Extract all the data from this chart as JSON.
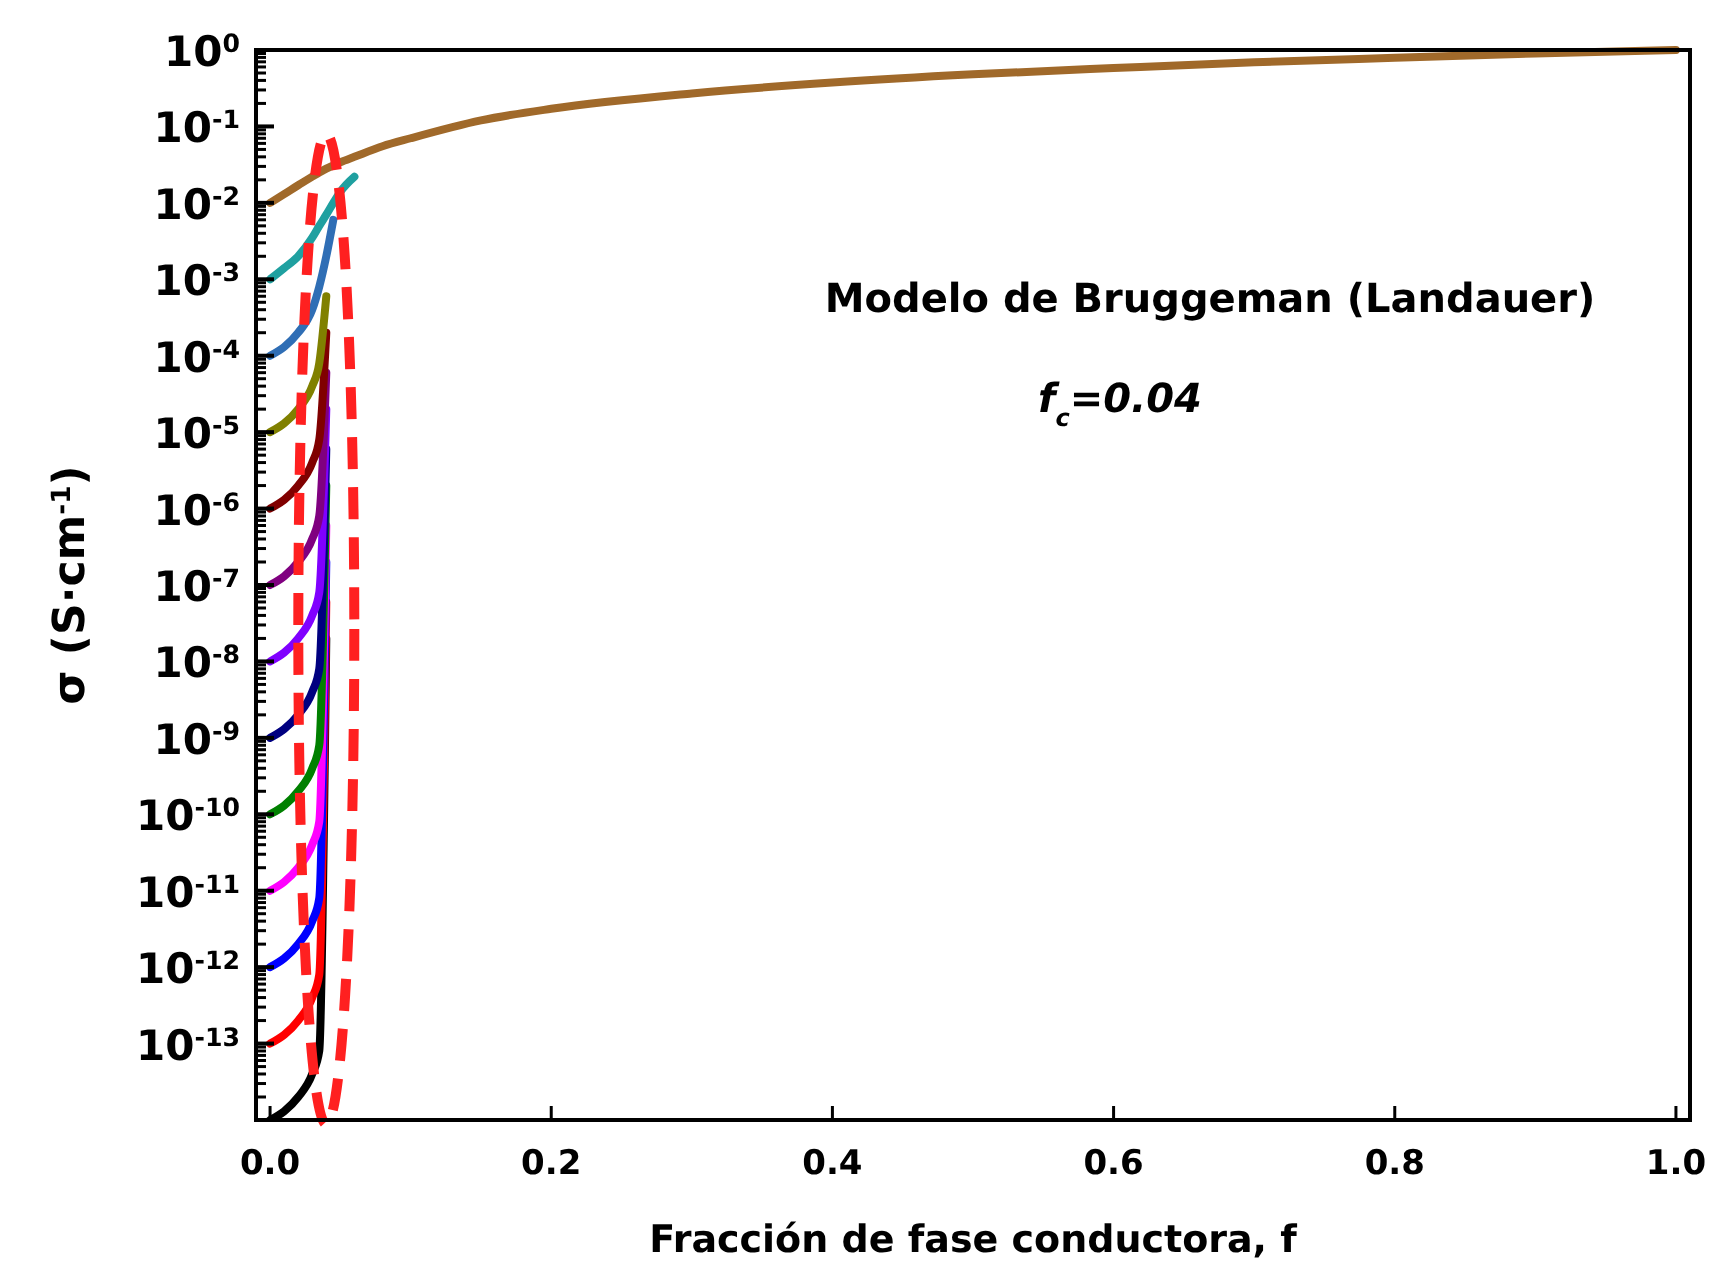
{
  "chart_data": {
    "type": "line",
    "xlabel": "Fracción de fase conductora, f",
    "ylabel": "σ (S·cm$^{-1}$)",
    "annotations": [
      "Modelo de Bruggeman (Landauer)",
      "f$_{c}$=0.04"
    ],
    "log": "y",
    "grid": false,
    "marker": "none",
    "line_style": "solid",
    "xlim": [
      -0.01,
      1.01
    ],
    "xticks": [
      {
        "value": 0,
        "label": "0.0"
      },
      0.2,
      0.4,
      0.6,
      0.8,
      {
        "value": 1,
        "label": "1.0"
      }
    ],
    "ylim": [
      1e-14,
      1
    ],
    "yticks": [
      {
        "value": 1,
        "label": "10$^{0}$"
      },
      {
        "value": 0.1,
        "label": "10$^{-1}$"
      },
      {
        "value": 0.01,
        "label": "10$^{-2}$"
      },
      {
        "value": 0.001,
        "label": "10$^{-3}$"
      },
      {
        "value": 0.0001,
        "label": "10$^{-4}$"
      },
      {
        "value": 1e-05,
        "label": "10$^{-5}$"
      },
      {
        "value": 1e-06,
        "label": "10$^{-6}$"
      },
      {
        "value": 1e-07,
        "label": "10$^{-7}$"
      },
      {
        "value": 1e-08,
        "label": "10$^{-8}$"
      },
      {
        "value": 1e-09,
        "label": "10$^{-9}$"
      },
      {
        "value": 1e-10,
        "label": "10$^{-10}$"
      },
      {
        "value": 1e-11,
        "label": "10$^{-11}$"
      },
      {
        "value": 1e-12,
        "label": "10$^{-12}$"
      },
      {
        "value": 1e-13,
        "label": "10$^{-13}$"
      },
      {
        "value": 1e-14,
        "label": null
      }
    ],
    "x": [
      0,
      0.01,
      0.02,
      0.03,
      0.035,
      0.04,
      0.045,
      0.05,
      0.06,
      0.08,
      0.1,
      0.15,
      0.2,
      0.3,
      0.4,
      0.5,
      0.6,
      0.7,
      0.8,
      0.9,
      1.0
    ],
    "series": [
      {
        "color": "#000000",
        "values": [
          1e-14,
          1.3e-14,
          2e-14,
          4e-14,
          8e-14,
          2e-08,
          null,
          null,
          null,
          null,
          null,
          null,
          null,
          null,
          null,
          null,
          null,
          null,
          null,
          null,
          null
        ]
      },
      {
        "color": "#ff0000",
        "values": [
          1e-13,
          1.3e-13,
          2e-13,
          4e-13,
          8e-13,
          6e-08,
          null,
          null,
          null,
          null,
          null,
          null,
          null,
          null,
          null,
          null,
          null,
          null,
          null,
          null,
          null
        ]
      },
      {
        "color": "#0000ff",
        "values": [
          1e-12,
          1.3e-12,
          2e-12,
          4e-12,
          8e-12,
          2e-07,
          null,
          null,
          null,
          null,
          null,
          null,
          null,
          null,
          null,
          null,
          null,
          null,
          null,
          null,
          null
        ]
      },
      {
        "color": "#ff00ff",
        "values": [
          1e-11,
          1.3e-11,
          2e-11,
          4e-11,
          8e-11,
          6e-07,
          null,
          null,
          null,
          null,
          null,
          null,
          null,
          null,
          null,
          null,
          null,
          null,
          null,
          null,
          null
        ]
      },
      {
        "color": "#008000",
        "values": [
          1e-10,
          1.3e-10,
          2e-10,
          4e-10,
          8e-10,
          2e-06,
          null,
          null,
          null,
          null,
          null,
          null,
          null,
          null,
          null,
          null,
          null,
          null,
          null,
          null,
          null
        ]
      },
      {
        "color": "#000080",
        "values": [
          1e-09,
          1.3e-09,
          2e-09,
          4e-09,
          8e-09,
          6e-06,
          null,
          null,
          null,
          null,
          null,
          null,
          null,
          null,
          null,
          null,
          null,
          null,
          null,
          null,
          null
        ]
      },
      {
        "color": "#8000ff",
        "values": [
          1e-08,
          1.3e-08,
          2e-08,
          4e-08,
          8e-08,
          2e-05,
          null,
          null,
          null,
          null,
          null,
          null,
          null,
          null,
          null,
          null,
          null,
          null,
          null,
          null,
          null
        ]
      },
      {
        "color": "#800080",
        "values": [
          1e-07,
          1.3e-07,
          2e-07,
          4e-07,
          8e-07,
          6e-05,
          null,
          null,
          null,
          null,
          null,
          null,
          null,
          null,
          null,
          null,
          null,
          null,
          null,
          null,
          null
        ]
      },
      {
        "color": "#800000",
        "values": [
          1e-06,
          1.3e-06,
          2e-06,
          4e-06,
          8e-06,
          0.0002,
          null,
          null,
          null,
          null,
          null,
          null,
          null,
          null,
          null,
          null,
          null,
          null,
          null,
          null,
          null
        ]
      },
      {
        "color": "#808000",
        "values": [
          1e-05,
          1.3e-05,
          2e-05,
          4e-05,
          8e-05,
          0.0006,
          null,
          null,
          null,
          null,
          null,
          null,
          null,
          null,
          null,
          null,
          null,
          null,
          null,
          null,
          null
        ]
      },
      {
        "color": "#2f6eb5",
        "values": [
          0.0001,
          0.00013,
          0.0002,
          0.0004,
          0.0008,
          0.002,
          0.006,
          null,
          null,
          null,
          null,
          null,
          null,
          null,
          null,
          null,
          null,
          null,
          null,
          null,
          null
        ]
      },
      {
        "color": "#1fa0a0",
        "values": [
          0.001,
          0.0014,
          0.002,
          0.0035,
          0.005,
          0.007,
          0.01,
          0.014,
          0.022,
          null,
          null,
          null,
          null,
          null,
          null,
          null,
          null,
          null,
          null,
          null,
          null
        ]
      },
      {
        "color": "#a0692a",
        "values": [
          0.01,
          0.013,
          0.017,
          0.022,
          0.025,
          0.028,
          0.031,
          0.034,
          0.04,
          0.055,
          0.07,
          0.12,
          0.17,
          0.27,
          0.375,
          0.48,
          0.58,
          0.69,
          0.79,
          0.9,
          1.0
        ]
      }
    ]
  }
}
